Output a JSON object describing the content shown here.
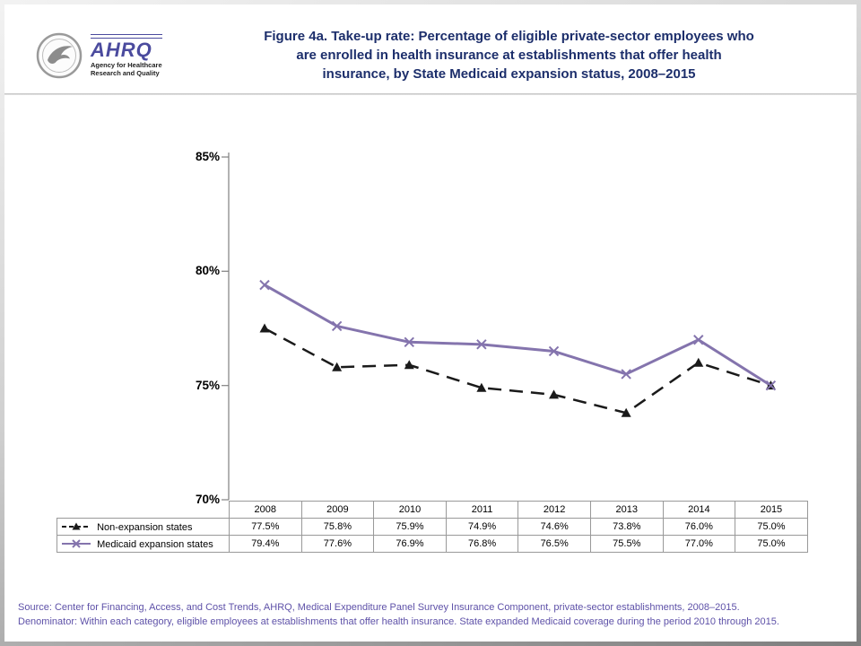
{
  "header": {
    "logo": {
      "brand": "AHRQ",
      "tagline_line1": "Agency for Healthcare",
      "tagline_line2": "Research and Quality"
    },
    "title_lines": [
      "Figure 4a. Take-up rate: Percentage of eligible private-sector employees who",
      "are enrolled in health insurance at establishments that offer health",
      "insurance, by State Medicaid expansion status, 2008–2015"
    ]
  },
  "chart_data": {
    "type": "line",
    "title": "Figure 4a. Take-up rate: Percentage of eligible private-sector employees who are enrolled in health insurance at establishments that offer health insurance, by State Medicaid expansion status, 2008–2015",
    "categories": [
      "2008",
      "2009",
      "2010",
      "2011",
      "2012",
      "2013",
      "2014",
      "2015"
    ],
    "series": [
      {
        "name": "Non-expansion states",
        "values": [
          77.5,
          75.8,
          75.9,
          74.9,
          74.6,
          73.8,
          76.0,
          75.0
        ],
        "color": "#1a1a1a",
        "line_style": "dashed",
        "marker": "triangle"
      },
      {
        "name": "Medicaid expansion states",
        "values": [
          79.4,
          77.6,
          76.9,
          76.8,
          76.5,
          75.5,
          77.0,
          75.0
        ],
        "color": "#8474ad",
        "line_style": "solid",
        "marker": "x"
      }
    ],
    "ylim": [
      70,
      85
    ],
    "ytick_labels": [
      "85%",
      "80%",
      "75%",
      "70%"
    ],
    "grid": false,
    "legend_position": "table-left-column"
  },
  "table": {
    "rows": [
      {
        "label": "Non-expansion states",
        "values": [
          "77.5%",
          "75.8%",
          "75.9%",
          "74.9%",
          "74.6%",
          "73.8%",
          "76.0%",
          "75.0%"
        ]
      },
      {
        "label": "Medicaid expansion states",
        "values": [
          "79.4%",
          "77.6%",
          "76.9%",
          "76.8%",
          "76.5%",
          "75.5%",
          "77.0%",
          "75.0%"
        ]
      }
    ]
  },
  "footer": {
    "line1": "Source: Center for Financing, Access, and Cost Trends, AHRQ, Medical Expenditure Panel Survey Insurance Component, private-sector establishments, 2008–2015.",
    "line2": "Denominator: Within each category, eligible employees at establishments that offer health insurance. State expanded Medicaid coverage during the period 2010 through 2015."
  },
  "colors": {
    "title_text": "#1c2e6b",
    "footer_text": "#5e51a8",
    "non_expansion_line": "#1a1a1a",
    "medicaid_expansion_line": "#8474ad",
    "axis": "#808080",
    "table_border": "#999999",
    "logo_brand": "#4b4b9e"
  }
}
